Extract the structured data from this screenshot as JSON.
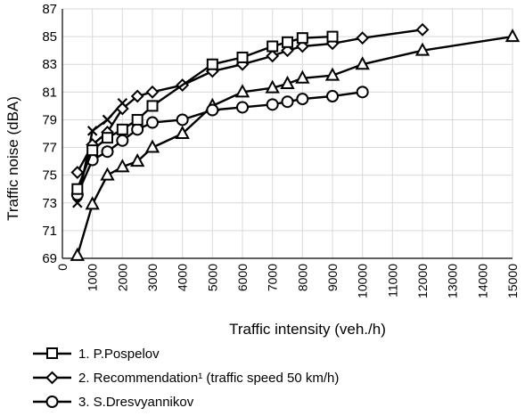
{
  "chart_data": {
    "type": "line",
    "title": "",
    "xlabel": "Traffic intensity (veh./h)",
    "ylabel": "Traffic noise (dBA)",
    "xlim": [
      0,
      15000
    ],
    "ylim": [
      69,
      87
    ],
    "xticks": [
      0,
      1000,
      2000,
      3000,
      4000,
      5000,
      6000,
      7000,
      8000,
      9000,
      10000,
      11000,
      12000,
      13000,
      14000,
      15000
    ],
    "yticks": [
      69,
      71,
      73,
      75,
      77,
      79,
      81,
      83,
      85,
      87
    ],
    "xtick_labels": [
      "0",
      "1000",
      "2000",
      "3000",
      "4000",
      "5000",
      "6000",
      "7000",
      "8000",
      "9000",
      "10000",
      "11000",
      "12000",
      "13000",
      "14000",
      "15000"
    ],
    "ytick_labels": [
      "69",
      "71",
      "73",
      "75",
      "77",
      "79",
      "81",
      "83",
      "85",
      "87"
    ],
    "grid": "vertical and horizontal major gridlines",
    "legend_position": "bottom",
    "series": [
      {
        "name": "1. P.Pospelov",
        "marker": "square",
        "in_legend": true,
        "x": [
          500,
          1000,
          1500,
          2000,
          2500,
          3000,
          5000,
          6000,
          7000,
          7500,
          8000,
          9000
        ],
        "y": [
          74.0,
          76.8,
          77.7,
          78.3,
          79.0,
          80.0,
          83.0,
          83.5,
          84.3,
          84.6,
          84.9,
          85.0
        ]
      },
      {
        "name": "2. Recommendation¹ (traffic speed 50 km/h)",
        "marker": "diamond",
        "in_legend": true,
        "x": [
          500,
          1000,
          1500,
          2000,
          2500,
          3000,
          4000,
          5000,
          6000,
          7000,
          7500,
          8000,
          9000,
          10000,
          12000
        ],
        "y": [
          75.2,
          77.2,
          78.1,
          79.8,
          80.7,
          81.0,
          81.5,
          82.5,
          83.0,
          83.6,
          84.0,
          84.3,
          84.5,
          84.9,
          85.5
        ]
      },
      {
        "name": "3. S.Dresvyannikov",
        "marker": "circle",
        "in_legend": true,
        "x": [
          500,
          1000,
          1500,
          2000,
          2500,
          3000,
          4000,
          5000,
          6000,
          7000,
          7500,
          8000,
          9000,
          10000
        ],
        "y": [
          73.6,
          76.1,
          76.7,
          77.5,
          78.3,
          78.8,
          79.0,
          79.7,
          79.9,
          80.1,
          80.3,
          80.5,
          80.7,
          81.0
        ]
      },
      {
        "name": "",
        "marker": "x",
        "in_legend": false,
        "x": [
          500,
          1000,
          1500,
          2000
        ],
        "y": [
          73.0,
          78.2,
          79.0,
          80.2
        ]
      },
      {
        "name": "",
        "marker": "triangle",
        "in_legend": false,
        "x": [
          500,
          1000,
          1500,
          2000,
          2500,
          3000,
          4000,
          5000,
          6000,
          7000,
          7500,
          8000,
          9000,
          10000,
          12000,
          15000
        ],
        "y": [
          69.2,
          72.9,
          75.0,
          75.6,
          76.0,
          77.0,
          78.0,
          80.0,
          81.0,
          81.3,
          81.6,
          82.0,
          82.2,
          83.0,
          84.0,
          85.0
        ]
      }
    ]
  }
}
